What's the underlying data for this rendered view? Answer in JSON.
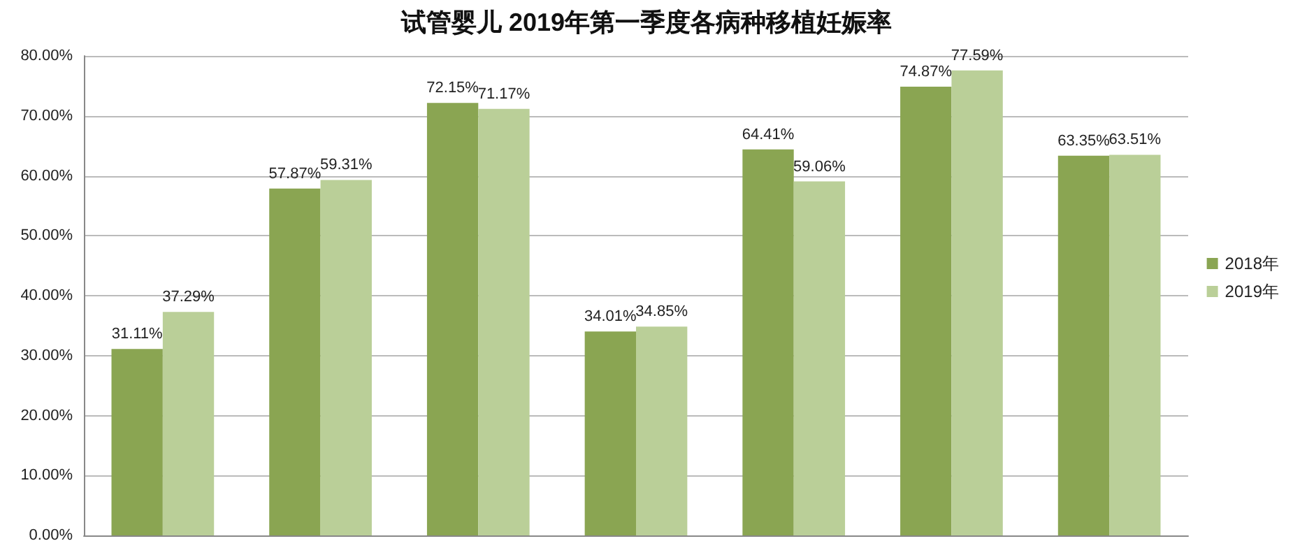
{
  "chart_data": {
    "type": "bar",
    "title": "试管婴儿 2019年第一季度各病种移植妊娠率",
    "categories": [
      null,
      null,
      null,
      null,
      null,
      null,
      null
    ],
    "series": [
      {
        "name": "2018年",
        "color": "#8aa552",
        "values": [
          31.11,
          57.87,
          72.15,
          34.01,
          64.41,
          74.87,
          63.35
        ],
        "value_labels": [
          "31.11%",
          "57.87%",
          "72.15%",
          "34.01%",
          "64.41%",
          "74.87%",
          "63.35%"
        ]
      },
      {
        "name": "2019年",
        "color": "#bacf98",
        "values": [
          37.29,
          59.31,
          71.17,
          34.85,
          59.06,
          77.59,
          63.51
        ],
        "value_labels": [
          "37.29%",
          "59.31%",
          "71.17%",
          "34.85%",
          "59.06%",
          "77.59%",
          "63.51%"
        ]
      }
    ],
    "ylim": [
      0,
      80
    ],
    "yticks": [
      {
        "value": 0,
        "label": "0.00%"
      },
      {
        "value": 10,
        "label": "10.00%"
      },
      {
        "value": 20,
        "label": "20.00%"
      },
      {
        "value": 30,
        "label": "30.00%"
      },
      {
        "value": 40,
        "label": "40.00%"
      },
      {
        "value": 50,
        "label": "50.00%"
      },
      {
        "value": 60,
        "label": "60.00%"
      },
      {
        "value": 70,
        "label": "70.00%"
      },
      {
        "value": 80,
        "label": "80.00%"
      }
    ],
    "grid": "y",
    "legend": "right"
  }
}
